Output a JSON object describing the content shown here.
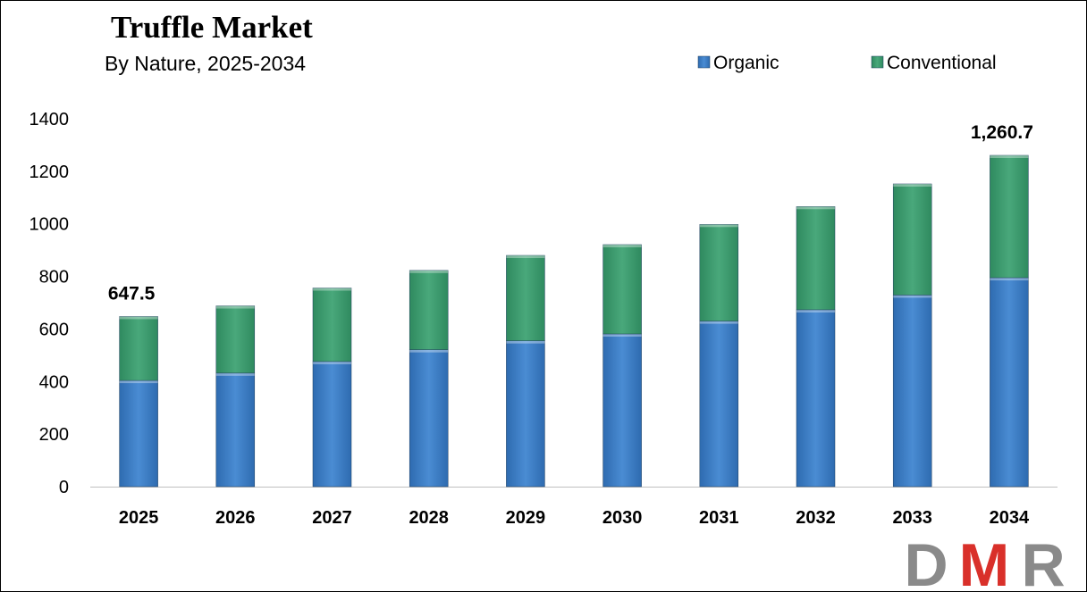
{
  "chart_data": {
    "type": "bar",
    "stacked": true,
    "title": "Truffle Market",
    "subtitle": "By Nature, 2025-2034",
    "categories": [
      "2025",
      "2026",
      "2027",
      "2028",
      "2029",
      "2030",
      "2031",
      "2032",
      "2033",
      "2034"
    ],
    "series": [
      {
        "name": "Organic",
        "color": "#3A7CC4",
        "values": [
          404,
          432,
          476,
          521,
          555,
          581,
          630,
          673,
          729,
          795
        ]
      },
      {
        "name": "Conventional",
        "color": "#3E9A6F",
        "values": [
          243.5,
          256,
          280,
          302,
          325,
          340,
          368,
          393,
          423,
          465.7
        ]
      }
    ],
    "yticks": [
      "0",
      "200",
      "400",
      "600",
      "800",
      "1000",
      "1200",
      "1400"
    ],
    "ylim": [
      0,
      1400
    ],
    "grid": false,
    "legend_position": "top-right",
    "data_labels": [
      {
        "category": "2025",
        "text": "647.5",
        "value": 647.5
      },
      {
        "category": "2034",
        "text": "1,260.7",
        "value": 1260.7
      }
    ]
  },
  "logo": {
    "text": "DMR",
    "colors": [
      "#8A8A8A",
      "#D9302A",
      "#8A8A8A"
    ]
  }
}
